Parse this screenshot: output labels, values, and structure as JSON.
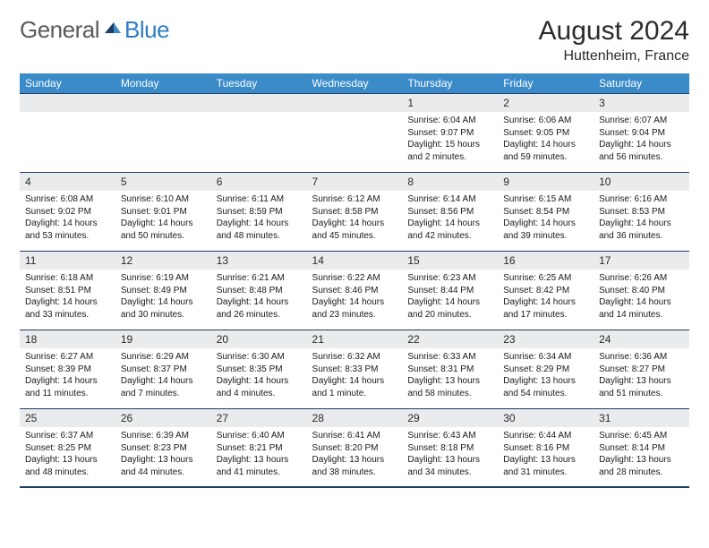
{
  "logo": {
    "text_general": "General",
    "text_blue": "Blue",
    "accent_color": "#2f7ec2",
    "gray_color": "#5a5a5a"
  },
  "title": "August 2024",
  "location": "Huttenheim, France",
  "day_headers": [
    "Sunday",
    "Monday",
    "Tuesday",
    "Wednesday",
    "Thursday",
    "Friday",
    "Saturday"
  ],
  "colors": {
    "header_bg": "#3b8bc9",
    "header_text": "#ffffff",
    "daynum_bg": "#e9ebec",
    "border": "#1c3e66",
    "text": "#1a1a1a"
  },
  "weeks": [
    [
      {
        "empty": true
      },
      {
        "empty": true
      },
      {
        "empty": true
      },
      {
        "empty": true
      },
      {
        "num": "1",
        "sunrise": "Sunrise: 6:04 AM",
        "sunset": "Sunset: 9:07 PM",
        "daylight": "Daylight: 15 hours and 2 minutes."
      },
      {
        "num": "2",
        "sunrise": "Sunrise: 6:06 AM",
        "sunset": "Sunset: 9:05 PM",
        "daylight": "Daylight: 14 hours and 59 minutes."
      },
      {
        "num": "3",
        "sunrise": "Sunrise: 6:07 AM",
        "sunset": "Sunset: 9:04 PM",
        "daylight": "Daylight: 14 hours and 56 minutes."
      }
    ],
    [
      {
        "num": "4",
        "sunrise": "Sunrise: 6:08 AM",
        "sunset": "Sunset: 9:02 PM",
        "daylight": "Daylight: 14 hours and 53 minutes."
      },
      {
        "num": "5",
        "sunrise": "Sunrise: 6:10 AM",
        "sunset": "Sunset: 9:01 PM",
        "daylight": "Daylight: 14 hours and 50 minutes."
      },
      {
        "num": "6",
        "sunrise": "Sunrise: 6:11 AM",
        "sunset": "Sunset: 8:59 PM",
        "daylight": "Daylight: 14 hours and 48 minutes."
      },
      {
        "num": "7",
        "sunrise": "Sunrise: 6:12 AM",
        "sunset": "Sunset: 8:58 PM",
        "daylight": "Daylight: 14 hours and 45 minutes."
      },
      {
        "num": "8",
        "sunrise": "Sunrise: 6:14 AM",
        "sunset": "Sunset: 8:56 PM",
        "daylight": "Daylight: 14 hours and 42 minutes."
      },
      {
        "num": "9",
        "sunrise": "Sunrise: 6:15 AM",
        "sunset": "Sunset: 8:54 PM",
        "daylight": "Daylight: 14 hours and 39 minutes."
      },
      {
        "num": "10",
        "sunrise": "Sunrise: 6:16 AM",
        "sunset": "Sunset: 8:53 PM",
        "daylight": "Daylight: 14 hours and 36 minutes."
      }
    ],
    [
      {
        "num": "11",
        "sunrise": "Sunrise: 6:18 AM",
        "sunset": "Sunset: 8:51 PM",
        "daylight": "Daylight: 14 hours and 33 minutes."
      },
      {
        "num": "12",
        "sunrise": "Sunrise: 6:19 AM",
        "sunset": "Sunset: 8:49 PM",
        "daylight": "Daylight: 14 hours and 30 minutes."
      },
      {
        "num": "13",
        "sunrise": "Sunrise: 6:21 AM",
        "sunset": "Sunset: 8:48 PM",
        "daylight": "Daylight: 14 hours and 26 minutes."
      },
      {
        "num": "14",
        "sunrise": "Sunrise: 6:22 AM",
        "sunset": "Sunset: 8:46 PM",
        "daylight": "Daylight: 14 hours and 23 minutes."
      },
      {
        "num": "15",
        "sunrise": "Sunrise: 6:23 AM",
        "sunset": "Sunset: 8:44 PM",
        "daylight": "Daylight: 14 hours and 20 minutes."
      },
      {
        "num": "16",
        "sunrise": "Sunrise: 6:25 AM",
        "sunset": "Sunset: 8:42 PM",
        "daylight": "Daylight: 14 hours and 17 minutes."
      },
      {
        "num": "17",
        "sunrise": "Sunrise: 6:26 AM",
        "sunset": "Sunset: 8:40 PM",
        "daylight": "Daylight: 14 hours and 14 minutes."
      }
    ],
    [
      {
        "num": "18",
        "sunrise": "Sunrise: 6:27 AM",
        "sunset": "Sunset: 8:39 PM",
        "daylight": "Daylight: 14 hours and 11 minutes."
      },
      {
        "num": "19",
        "sunrise": "Sunrise: 6:29 AM",
        "sunset": "Sunset: 8:37 PM",
        "daylight": "Daylight: 14 hours and 7 minutes."
      },
      {
        "num": "20",
        "sunrise": "Sunrise: 6:30 AM",
        "sunset": "Sunset: 8:35 PM",
        "daylight": "Daylight: 14 hours and 4 minutes."
      },
      {
        "num": "21",
        "sunrise": "Sunrise: 6:32 AM",
        "sunset": "Sunset: 8:33 PM",
        "daylight": "Daylight: 14 hours and 1 minute."
      },
      {
        "num": "22",
        "sunrise": "Sunrise: 6:33 AM",
        "sunset": "Sunset: 8:31 PM",
        "daylight": "Daylight: 13 hours and 58 minutes."
      },
      {
        "num": "23",
        "sunrise": "Sunrise: 6:34 AM",
        "sunset": "Sunset: 8:29 PM",
        "daylight": "Daylight: 13 hours and 54 minutes."
      },
      {
        "num": "24",
        "sunrise": "Sunrise: 6:36 AM",
        "sunset": "Sunset: 8:27 PM",
        "daylight": "Daylight: 13 hours and 51 minutes."
      }
    ],
    [
      {
        "num": "25",
        "sunrise": "Sunrise: 6:37 AM",
        "sunset": "Sunset: 8:25 PM",
        "daylight": "Daylight: 13 hours and 48 minutes."
      },
      {
        "num": "26",
        "sunrise": "Sunrise: 6:39 AM",
        "sunset": "Sunset: 8:23 PM",
        "daylight": "Daylight: 13 hours and 44 minutes."
      },
      {
        "num": "27",
        "sunrise": "Sunrise: 6:40 AM",
        "sunset": "Sunset: 8:21 PM",
        "daylight": "Daylight: 13 hours and 41 minutes."
      },
      {
        "num": "28",
        "sunrise": "Sunrise: 6:41 AM",
        "sunset": "Sunset: 8:20 PM",
        "daylight": "Daylight: 13 hours and 38 minutes."
      },
      {
        "num": "29",
        "sunrise": "Sunrise: 6:43 AM",
        "sunset": "Sunset: 8:18 PM",
        "daylight": "Daylight: 13 hours and 34 minutes."
      },
      {
        "num": "30",
        "sunrise": "Sunrise: 6:44 AM",
        "sunset": "Sunset: 8:16 PM",
        "daylight": "Daylight: 13 hours and 31 minutes."
      },
      {
        "num": "31",
        "sunrise": "Sunrise: 6:45 AM",
        "sunset": "Sunset: 8:14 PM",
        "daylight": "Daylight: 13 hours and 28 minutes."
      }
    ]
  ]
}
